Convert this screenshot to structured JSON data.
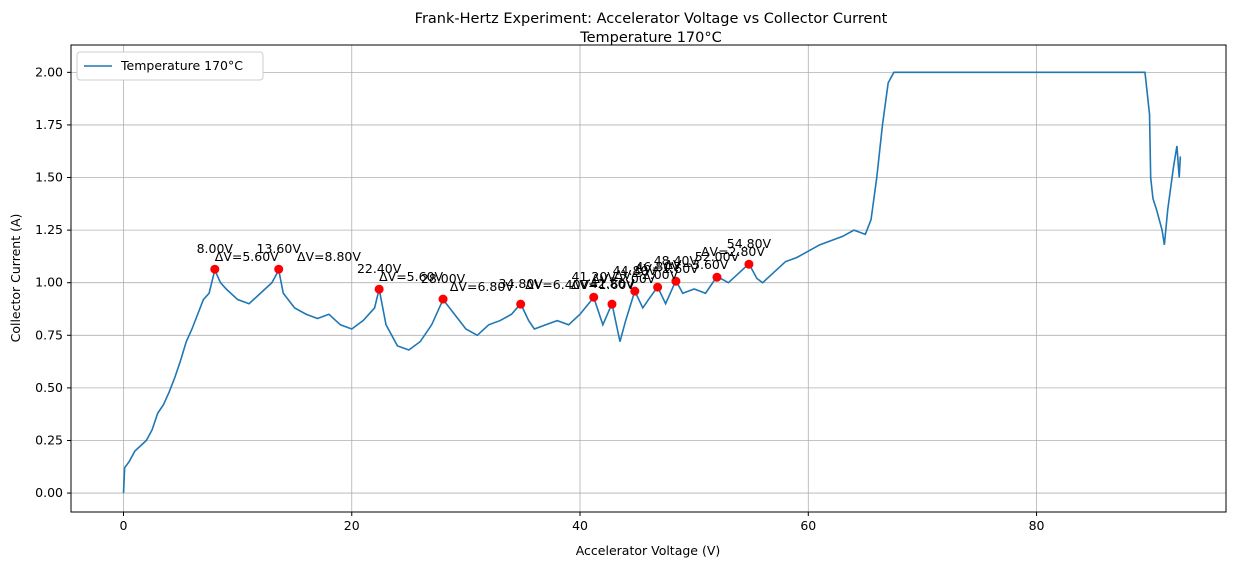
{
  "chart_data": {
    "type": "line",
    "title": "Frank-Hertz Experiment: Accelerator Voltage vs Collector Current",
    "subtitle": "Temperature 170°C",
    "x_label": "Accelerator Voltage (V)",
    "y_label": "Collector Current (A)",
    "xlim": [
      -4.6,
      96.6
    ],
    "ylim": [
      -0.09,
      2.13
    ],
    "xticks": [
      0,
      20,
      40,
      60,
      80
    ],
    "yticks": [
      {
        "value": 0,
        "label": "0.00"
      },
      {
        "value": 0.25,
        "label": "0.25"
      },
      {
        "value": 0.5,
        "label": "0.50"
      },
      {
        "value": 0.75,
        "label": "0.75"
      },
      {
        "value": 1,
        "label": "1.00"
      },
      {
        "value": 1.25,
        "label": "1.25"
      },
      {
        "value": 1.5,
        "label": "1.50"
      },
      {
        "value": 1.75,
        "label": "1.75"
      },
      {
        "value": 2,
        "label": "2.00"
      }
    ],
    "grid": true,
    "legend": "upper left",
    "series": [
      {
        "name": "Temperature 170°C",
        "color": "#1f77b4",
        "x": [
          0,
          0.1,
          0.5,
          1,
          2,
          2.5,
          3,
          3.5,
          4,
          4.5,
          5,
          5.5,
          6,
          6.5,
          7,
          7.5,
          8,
          8.5,
          9,
          10,
          11,
          12,
          13,
          13.6,
          14,
          15,
          16,
          17,
          18,
          19,
          20,
          21,
          22,
          22.4,
          23,
          24,
          25,
          26,
          27,
          28,
          29,
          30,
          31,
          32,
          33,
          34,
          34.8,
          35.5,
          36,
          37,
          38,
          39,
          40,
          41.2,
          42,
          42.8,
          43.5,
          44,
          44.8,
          45.5,
          46,
          46.8,
          47.5,
          48.4,
          49,
          50,
          51,
          52,
          53,
          54,
          54.8,
          55.5,
          56,
          57,
          58,
          59,
          60,
          61,
          62,
          63,
          64,
          65,
          65.5,
          66,
          66.5,
          67,
          67.5,
          70,
          89.5,
          89.7,
          89.9,
          90,
          90.2,
          90.5,
          91,
          91.2,
          91.5,
          92,
          92.3,
          92.5,
          92.6
        ],
        "values": [
          0,
          0.12,
          0.15,
          0.2,
          0.25,
          0.3,
          0.38,
          0.42,
          0.48,
          0.55,
          0.63,
          0.72,
          0.78,
          0.85,
          0.92,
          0.95,
          1.06,
          1.0,
          0.97,
          0.92,
          0.9,
          0.95,
          1.0,
          1.06,
          0.95,
          0.88,
          0.85,
          0.83,
          0.85,
          0.8,
          0.78,
          0.82,
          0.88,
          0.97,
          0.8,
          0.7,
          0.68,
          0.72,
          0.8,
          0.92,
          0.85,
          0.78,
          0.75,
          0.8,
          0.82,
          0.85,
          0.9,
          0.82,
          0.78,
          0.8,
          0.82,
          0.8,
          0.85,
          0.93,
          0.8,
          0.9,
          0.72,
          0.82,
          0.96,
          0.88,
          0.92,
          0.98,
          0.9,
          1.01,
          0.95,
          0.97,
          0.95,
          1.03,
          1.0,
          1.05,
          1.09,
          1.02,
          1.0,
          1.05,
          1.1,
          1.12,
          1.15,
          1.18,
          1.2,
          1.22,
          1.25,
          1.23,
          1.3,
          1.5,
          1.75,
          1.95,
          2.0,
          2.0,
          2.0,
          1.9,
          1.8,
          1.5,
          1.4,
          1.35,
          1.25,
          1.18,
          1.35,
          1.55,
          1.65,
          1.5,
          1.6
        ]
      }
    ],
    "peaks": {
      "color": "#ff0000",
      "x": [
        8,
        13.6,
        22.4,
        28,
        34.8,
        41.2,
        42.8,
        44.8,
        46.8,
        48.4,
        52,
        54.8
      ],
      "values": [
        1.064,
        1.064,
        0.969,
        0.922,
        0.898,
        0.931,
        0.898,
        0.96,
        0.979,
        1.007,
        1.026,
        1.088
      ],
      "labels": [
        "8.00V",
        "13.60V",
        "22.40V",
        "28.00V",
        "34.80V",
        "41.20V",
        "42.80V",
        "44.80V",
        "46.80V",
        "48.40V",
        "52.00V",
        "54.80V"
      ]
    },
    "delta_labels": {
      "color": "#0000ff",
      "labels": [
        "ΔV=5.60V",
        "ΔV=8.80V",
        "ΔV=5.60V",
        "ΔV=6.80V",
        "ΔV=6.40V",
        "ΔV=1.60V",
        "ΔV=2.00V",
        "ΔV=2.00V",
        "ΔV=1.60V",
        "ΔV=3.60V",
        "ΔV=2.80V"
      ]
    }
  }
}
